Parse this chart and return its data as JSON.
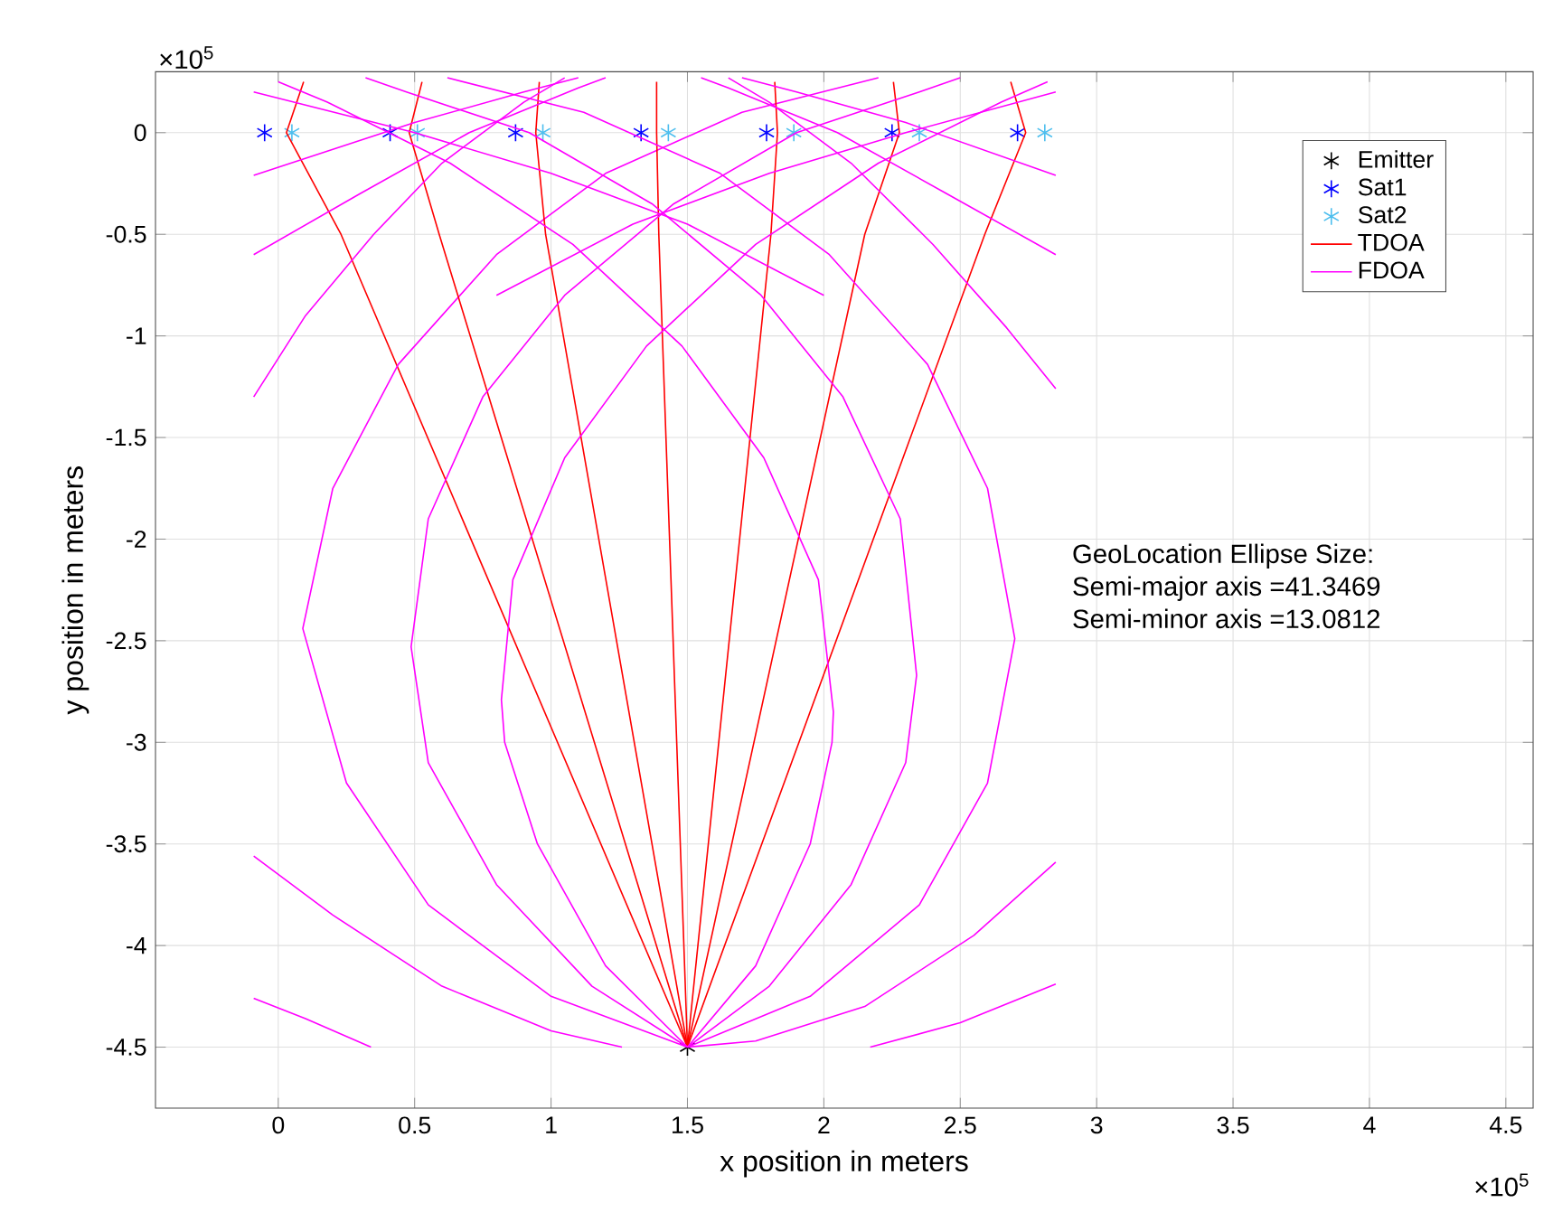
{
  "chart_data": {
    "type": "line",
    "xlabel": "x position in meters",
    "ylabel": "y position in meters",
    "xlim": [
      -0.45,
      4.6
    ],
    "ylim": [
      -4.8,
      0.3
    ],
    "xticks": [
      0,
      0.5,
      1,
      1.5,
      2,
      2.5,
      3,
      3.5,
      4,
      4.5
    ],
    "yticks": [
      -4.5,
      -4,
      -3.5,
      -3,
      -2.5,
      -2,
      -1.5,
      -1,
      -0.5,
      0
    ],
    "grid": true,
    "legend": "top right",
    "annotations": [
      "×10$^{5}$",
      "×10$^{5}$",
      "GeoLocation Ellipse Size:",
      "Semi-major axis =41.3469",
      "Semi-minor axis =13.0812"
    ],
    "series": [
      {
        "name": "Emitter",
        "type": "scatter",
        "marker": "cross",
        "color": "#000000",
        "x": [
          1.5
        ],
        "values": [
          -4.5
        ]
      },
      {
        "name": "Sat1",
        "type": "scatter",
        "marker": "cross",
        "color": "#0000ff",
        "x": [
          -0.05,
          0.41,
          0.87,
          1.33,
          1.79,
          2.25,
          2.71
        ],
        "values": [
          0,
          0,
          0,
          0,
          0,
          0,
          0
        ]
      },
      {
        "name": "Sat2",
        "type": "scatter",
        "marker": "cross",
        "color": "#4dbeee",
        "x": [
          0.05,
          0.51,
          0.97,
          1.43,
          1.89,
          2.35,
          2.81
        ],
        "values": [
          0,
          0,
          0,
          0,
          0,
          0,
          0
        ]
      },
      {
        "name": "TDOA",
        "color": "#ff0000",
        "x": [
          0.093,
          0.03,
          0.23,
          1.5
        ],
        "values": [
          0.25,
          0,
          -0.5,
          -4.5
        ]
      },
      {
        "name": "FDOA",
        "color": "#ff00ff",
        "x": [
          1.5,
          1.0,
          0.55,
          0.25,
          0.09,
          0.2,
          0.44,
          0.8,
          1.2,
          1.7,
          2.2
        ],
        "values": [
          -4.5,
          -4.25,
          -3.8,
          -3.2,
          -2.44,
          -1.75,
          -1.14,
          -0.6,
          -0.2,
          0.1,
          0.27
        ]
      },
      {
        "color": "#ff0000",
        "x": [
          0.527,
          0.48,
          0.59,
          1.5
        ],
        "values": [
          0.25,
          0,
          -0.5,
          -4.5
        ]
      },
      {
        "color": "#ff0000",
        "x": [
          0.957,
          0.944,
          0.98,
          1.5
        ],
        "values": [
          0.25,
          0,
          -0.5,
          -4.5
        ]
      },
      {
        "color": "#ff0000",
        "x": [
          1.387,
          1.387,
          1.395,
          1.5
        ],
        "values": [
          0.25,
          0,
          -0.5,
          -4.5
        ]
      },
      {
        "color": "#ff0000",
        "x": [
          1.82,
          1.83,
          1.806,
          1.5
        ],
        "values": [
          0.25,
          0,
          -0.5,
          -4.5
        ]
      },
      {
        "color": "#ff0000",
        "x": [
          2.255,
          2.277,
          2.15,
          1.5
        ],
        "values": [
          0.25,
          0,
          -0.5,
          -4.5
        ]
      },
      {
        "color": "#ff0000",
        "x": [
          2.685,
          2.74,
          2.59,
          1.5
        ],
        "values": [
          0.25,
          0,
          -0.5,
          -4.5
        ]
      },
      {
        "color": "#ff00ff",
        "x": [
          1.5,
          1.15,
          0.8,
          0.55,
          0.487,
          0.55,
          0.75,
          1.05,
          1.45,
          1.9,
          2.35,
          2.5
        ],
        "values": [
          -4.5,
          -4.2,
          -3.7,
          -3.1,
          -2.53,
          -1.9,
          -1.3,
          -0.8,
          -0.35,
          0,
          0.2,
          0.27
        ]
      },
      {
        "color": "#ff00ff",
        "x": [
          1.5,
          1.2,
          0.95,
          0.83,
          0.818,
          0.86,
          1.05,
          1.35,
          1.75,
          2.2,
          2.65,
          2.82
        ],
        "values": [
          -4.5,
          -4.1,
          -3.5,
          -3.0,
          -2.79,
          -2.2,
          -1.6,
          -1.05,
          -0.55,
          -0.15,
          0.15,
          0.25
        ]
      },
      {
        "color": "#ff00ff",
        "x": [
          1.5,
          1.95,
          2.35,
          2.6,
          2.7,
          2.6,
          2.38,
          2.02,
          1.62,
          1.12,
          0.62
        ],
        "values": [
          -4.5,
          -4.25,
          -3.8,
          -3.2,
          -2.49,
          -1.75,
          -1.14,
          -0.6,
          -0.2,
          0.1,
          0.27
        ]
      },
      {
        "color": "#ff00ff",
        "x": [
          1.5,
          1.8,
          2.1,
          2.3,
          2.34,
          2.28,
          2.07,
          1.77,
          1.37,
          0.92,
          0.47,
          0.32
        ],
        "values": [
          -4.5,
          -4.2,
          -3.7,
          -3.1,
          -2.67,
          -1.9,
          -1.3,
          -0.8,
          -0.35,
          0,
          0.2,
          0.27
        ]
      },
      {
        "color": "#ff00ff",
        "x": [
          1.5,
          1.75,
          1.95,
          2.03,
          2.035,
          1.98,
          1.78,
          1.48,
          1.08,
          0.63,
          0.18,
          0
        ],
        "values": [
          -4.5,
          -4.1,
          -3.5,
          -3.0,
          -2.85,
          -2.2,
          -1.6,
          -1.05,
          -0.55,
          -0.15,
          0.15,
          0.25
        ]
      },
      {
        "color": "#ff00ff",
        "x": [
          -0.09,
          0.1,
          0.35,
          0.6,
          0.9,
          1.05
        ],
        "values": [
          -1.3,
          -0.9,
          -0.5,
          -0.15,
          0.15,
          0.27
        ]
      },
      {
        "color": "#ff00ff",
        "x": [
          -0.09,
          0.3,
          0.7,
          1.1,
          1.2
        ],
        "values": [
          -0.6,
          -0.3,
          0,
          0.22,
          0.27
        ]
      },
      {
        "color": "#ff00ff",
        "x": [
          -0.09,
          0.5,
          0.9,
          1.1
        ],
        "values": [
          -0.21,
          0.05,
          0.2,
          0.27
        ]
      },
      {
        "color": "#ff00ff",
        "x": [
          -0.09,
          0.5,
          1.0,
          1.5,
          2.0
        ],
        "values": [
          0.2,
          0,
          -0.2,
          -0.45,
          -0.8
        ]
      },
      {
        "color": "#ff00ff",
        "x": [
          2.85,
          2.67,
          2.4,
          2.1,
          1.8,
          1.65
        ],
        "values": [
          -1.26,
          -0.96,
          -0.55,
          -0.15,
          0.15,
          0.27
        ]
      },
      {
        "color": "#ff00ff",
        "x": [
          2.85,
          2.45,
          2.05,
          1.65,
          1.55
        ],
        "values": [
          -0.6,
          -0.3,
          0,
          0.22,
          0.27
        ]
      },
      {
        "color": "#ff00ff",
        "x": [
          2.85,
          2.3,
          1.9,
          1.7
        ],
        "values": [
          -0.21,
          0.05,
          0.2,
          0.27
        ]
      },
      {
        "color": "#ff00ff",
        "x": [
          2.85,
          2.3,
          1.8,
          1.3,
          0.8
        ],
        "values": [
          0.2,
          0,
          -0.2,
          -0.45,
          -0.8
        ]
      },
      {
        "color": "#ff00ff",
        "x": [
          -0.09,
          0.1,
          0.34
        ],
        "values": [
          -4.26,
          -4.36,
          -4.5
        ]
      },
      {
        "color": "#ff00ff",
        "x": [
          -0.09,
          0.2,
          0.6,
          1.0,
          1.26
        ],
        "values": [
          -3.56,
          -3.85,
          -4.2,
          -4.42,
          -4.5
        ]
      },
      {
        "color": "#ff00ff",
        "x": [
          2.85,
          2.5,
          2.17
        ],
        "values": [
          -4.19,
          -4.38,
          -4.5
        ]
      },
      {
        "color": "#ff00ff",
        "x": [
          2.85,
          2.55,
          2.15,
          1.75,
          1.5
        ],
        "values": [
          -3.59,
          -3.95,
          -4.3,
          -4.47,
          -4.5
        ]
      }
    ]
  }
}
